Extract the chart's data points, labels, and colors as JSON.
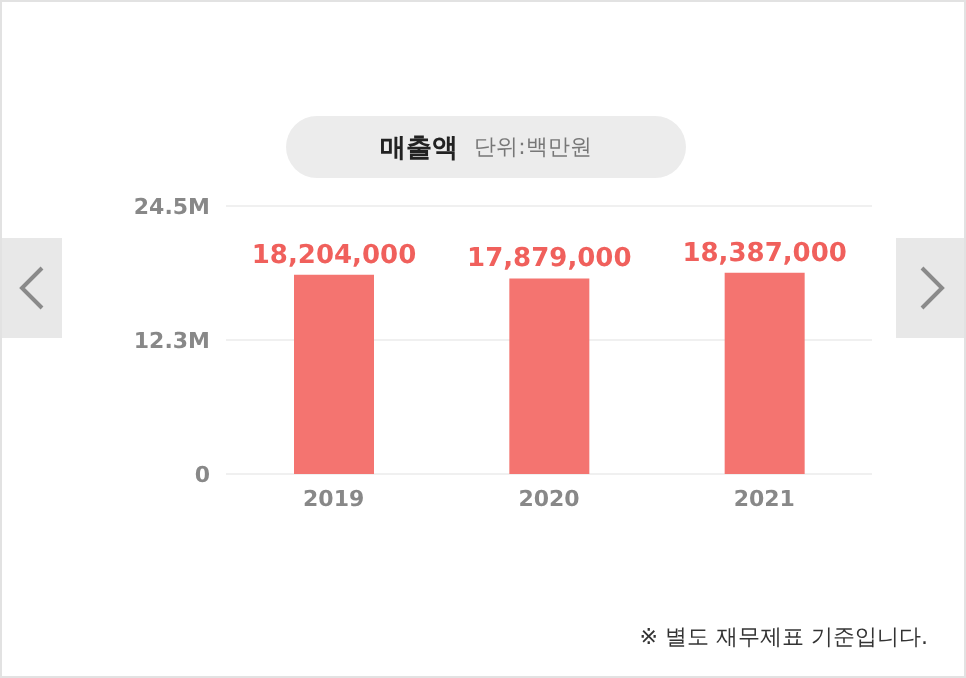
{
  "chart_data": {
    "type": "bar",
    "title": "매출액",
    "subtitle": "단위:백만원",
    "categories": [
      "2019",
      "2020",
      "2021"
    ],
    "series": [
      {
        "color": "#f47470",
        "values": [
          18204000,
          17879000,
          18387000
        ],
        "value_labels": [
          "18,204,000",
          "17,879,000",
          "18,387,000"
        ]
      }
    ],
    "ylim": [
      0,
      24500000
    ],
    "yticks": [
      0,
      {
        "value": 12250000,
        "label": "12.3M"
      },
      {
        "value": 24500000,
        "label": "24.5M"
      }
    ],
    "grid": "y",
    "legend": false,
    "annotations": [
      "※ 별도 재무제표 기준입니다."
    ]
  }
}
